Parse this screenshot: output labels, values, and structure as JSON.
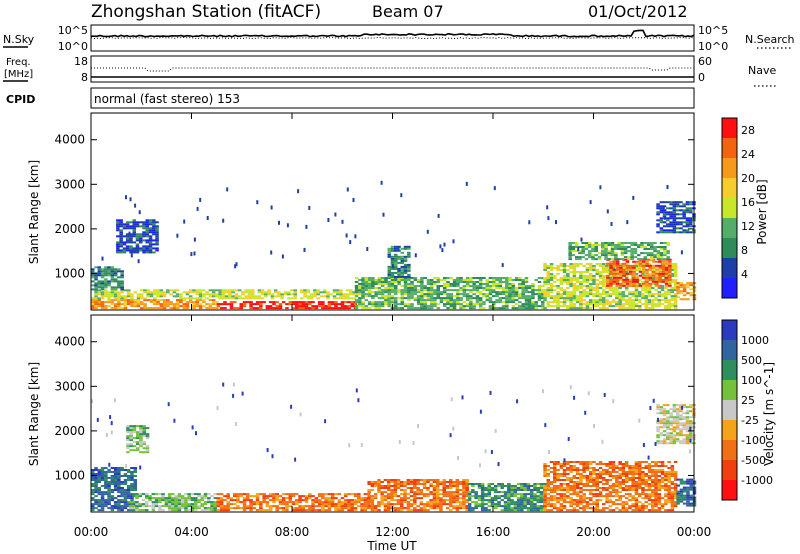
{
  "header": {
    "station": "Zhongshan Station (fitACF)",
    "beam": "Beam 07",
    "date": "01/Oct/2012"
  },
  "nsky_panel": {
    "label": "N.Sky",
    "left_ticks": [
      "10^5",
      "10^0"
    ],
    "right_label": "N.Search",
    "right_ticks": [
      "10^5",
      "10^0"
    ]
  },
  "freq_panel": {
    "label_line1": "Freq.",
    "label_line2": "[MHz]",
    "left_ticks": [
      "18",
      "8"
    ],
    "right_label": "Nave",
    "right_ticks": [
      "60",
      "0"
    ]
  },
  "cpid": {
    "label": "CPID",
    "value": "normal (fast stereo) 153"
  },
  "x_axis": {
    "label": "Time UT",
    "ticks": [
      "00:00",
      "04:00",
      "08:00",
      "12:00",
      "16:00",
      "20:00",
      "00:00"
    ]
  },
  "colors": {
    "power_scale": [
      "#1f1fff",
      "#1d3fa8",
      "#2e8c5a",
      "#54ae6a",
      "#c8e62a",
      "#f5cd2e",
      "#f59a1c",
      "#f26410",
      "#ff1010"
    ],
    "velocity_scale": [
      "#2b3bbf",
      "#3165a0",
      "#2e8e5e",
      "#74c23c",
      "#c8c8c8",
      "#f5a41a",
      "#f07018",
      "#f04010",
      "#ff1010"
    ]
  },
  "chart_data": [
    {
      "type": "heatmap",
      "title": "Power",
      "xlabel": "Time UT",
      "ylabel": "Slant Range [km]",
      "x_ticks": [
        "00:00",
        "04:00",
        "08:00",
        "12:00",
        "16:00",
        "20:00",
        "00:00"
      ],
      "xlim_hours": [
        0,
        24
      ],
      "y_ticks": [
        1000,
        2000,
        3000,
        4000
      ],
      "ylim": [
        180,
        4600
      ],
      "colorbar": {
        "label": "Power [dB]",
        "ticks": [
          "4",
          "8",
          "12",
          "16",
          "20",
          "24",
          "28"
        ],
        "range": [
          0,
          30
        ]
      },
      "regions": [
        {
          "t0": 0.0,
          "t1": 5.0,
          "r0": 200,
          "r1": 420,
          "value": 22
        },
        {
          "t0": 5.0,
          "t1": 10.5,
          "r0": 200,
          "r1": 380,
          "value": 28
        },
        {
          "t0": 0.0,
          "t1": 10.5,
          "r0": 420,
          "r1": 620,
          "value": 14
        },
        {
          "t0": 0.0,
          "t1": 1.2,
          "r0": 620,
          "r1": 1150,
          "value": 8
        },
        {
          "t0": 1.0,
          "t1": 2.6,
          "r0": 1450,
          "r1": 2200,
          "value": 6
        },
        {
          "t0": 10.5,
          "t1": 18.0,
          "r0": 200,
          "r1": 900,
          "value": 10
        },
        {
          "t0": 11.8,
          "t1": 12.6,
          "r0": 900,
          "r1": 1600,
          "value": 8
        },
        {
          "t0": 18.0,
          "t1": 23.3,
          "r0": 200,
          "r1": 1200,
          "value": 14
        },
        {
          "t0": 20.5,
          "t1": 23.0,
          "r0": 700,
          "r1": 1300,
          "value": 24
        },
        {
          "t0": 19.0,
          "t1": 23.0,
          "r0": 1300,
          "r1": 1700,
          "value": 10
        },
        {
          "t0": 23.3,
          "t1": 24.0,
          "r0": 400,
          "r1": 800,
          "value": 22
        },
        {
          "t0": 22.5,
          "t1": 24.0,
          "r0": 1900,
          "r1": 2600,
          "value": 5
        }
      ]
    },
    {
      "type": "heatmap",
      "title": "Velocity",
      "xlabel": "Time UT",
      "ylabel": "Slant Range [km]",
      "x_ticks": [
        "00:00",
        "04:00",
        "08:00",
        "12:00",
        "16:00",
        "20:00",
        "00:00"
      ],
      "xlim_hours": [
        0,
        24
      ],
      "y_ticks": [
        1000,
        2000,
        3000,
        4000
      ],
      "ylim": [
        180,
        4600
      ],
      "colorbar": {
        "label": "Velocity [m s^-1]",
        "ticks": [
          "1000",
          "500",
          "100",
          "25",
          "-25",
          "-100",
          "-500",
          "-1000"
        ]
      },
      "regions": [
        {
          "t0": 0.0,
          "t1": 1.8,
          "r0": 200,
          "r1": 1150,
          "value": 800
        },
        {
          "t0": 1.5,
          "t1": 5.0,
          "r0": 200,
          "r1": 600,
          "value": 80
        },
        {
          "t0": 5.0,
          "t1": 11.0,
          "r0": 200,
          "r1": 600,
          "value": -300
        },
        {
          "t0": 1.4,
          "t1": 2.2,
          "r0": 1500,
          "r1": 2100,
          "value": 60
        },
        {
          "t0": 11.0,
          "t1": 15.0,
          "r0": 200,
          "r1": 900,
          "value": -200
        },
        {
          "t0": 15.0,
          "t1": 18.0,
          "r0": 200,
          "r1": 800,
          "value": 150
        },
        {
          "t0": 18.0,
          "t1": 23.3,
          "r0": 200,
          "r1": 1300,
          "value": -200
        },
        {
          "t0": 23.3,
          "t1": 24.0,
          "r0": 300,
          "r1": 900,
          "value": 800
        },
        {
          "t0": 22.5,
          "t1": 24.0,
          "r0": 1700,
          "r1": 2600,
          "value": 0
        }
      ]
    }
  ]
}
